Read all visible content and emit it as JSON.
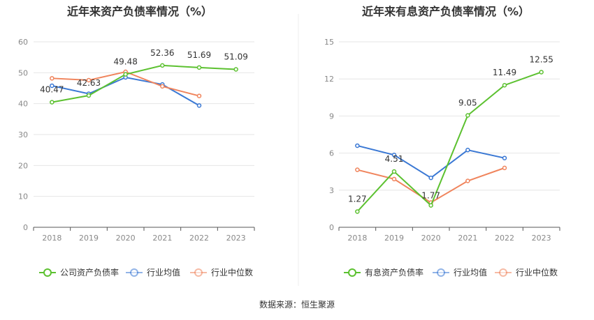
{
  "colors": {
    "company": "#5cc130",
    "industry_avg": "#3a78d4",
    "industry_median": "#f0845c",
    "grid": "#e6e6e6",
    "axis": "#555555",
    "tick_text": "#888888",
    "title_text": "#333333",
    "divider": "#eeeeee"
  },
  "chart_data": [
    {
      "type": "line",
      "title": "近年来资产负债率情况（%）",
      "categories": [
        "2018",
        "2019",
        "2020",
        "2021",
        "2022",
        "2023"
      ],
      "ylim": [
        0,
        60
      ],
      "yticks": [
        0,
        10,
        20,
        30,
        40,
        50,
        60
      ],
      "grid": true,
      "legend_position": "bottom",
      "series": [
        {
          "name": "公司资产负债率",
          "key": "company",
          "values": [
            40.47,
            42.63,
            49.48,
            52.36,
            51.69,
            51.09
          ],
          "labels": true
        },
        {
          "name": "行业均值",
          "key": "industry_avg",
          "values": [
            45.8,
            43.2,
            48.5,
            46.2,
            39.4,
            null
          ],
          "labels": false
        },
        {
          "name": "行业中位数",
          "key": "industry_median",
          "values": [
            48.2,
            47.6,
            50.3,
            45.6,
            42.5,
            null
          ],
          "labels": false
        }
      ],
      "data_labels": [
        "40.47",
        "42.63",
        "49.48",
        "52.36",
        "51.69",
        "51.09"
      ]
    },
    {
      "type": "line",
      "title": "近年来有息资产负债率情况（%）",
      "categories": [
        "2018",
        "2019",
        "2020",
        "2021",
        "2022",
        "2023"
      ],
      "ylim": [
        0,
        15
      ],
      "yticks": [
        0,
        3,
        6,
        9,
        12,
        15
      ],
      "grid": true,
      "legend_position": "bottom",
      "series": [
        {
          "name": "有息资产负债率",
          "key": "company",
          "values": [
            1.27,
            4.51,
            1.77,
            9.05,
            11.49,
            12.55
          ],
          "labels": true
        },
        {
          "name": "行业均值",
          "key": "industry_avg",
          "values": [
            6.6,
            5.85,
            4.0,
            6.25,
            5.6,
            null
          ],
          "labels": false
        },
        {
          "name": "行业中位数",
          "key": "industry_median",
          "values": [
            4.65,
            3.9,
            2.0,
            3.75,
            4.8,
            null
          ],
          "labels": false
        }
      ],
      "data_labels": [
        "1.27",
        "4.51",
        "1.77",
        "9.05",
        "11.49",
        "12.55"
      ]
    }
  ],
  "footer": {
    "source": "数据来源：恒生聚源"
  }
}
